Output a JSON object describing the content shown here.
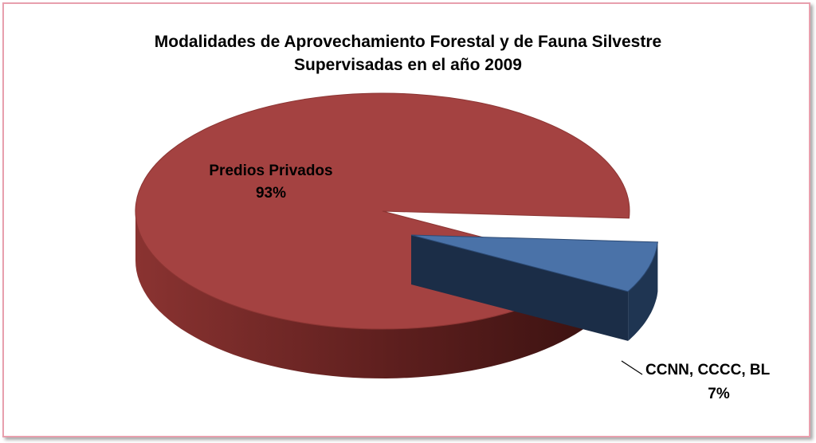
{
  "chart_data": {
    "type": "pie",
    "title": "Modalidades de Aprovechamiento  Forestal y de Fauna Silvestre",
    "subtitle": "Supervisadas  en el año 2009",
    "slices": [
      {
        "label": "Predios Privados",
        "value_label": "93%",
        "value": 93,
        "color": "#a44241",
        "side_color": "#7a2a29"
      },
      {
        "label": "CCNN, CCCC, BL",
        "value_label": "7%",
        "value": 7,
        "color": "#4a72a8",
        "side_color": "#1f3552",
        "exploded": true
      }
    ],
    "legend": "none",
    "style": "3d-exploded"
  }
}
